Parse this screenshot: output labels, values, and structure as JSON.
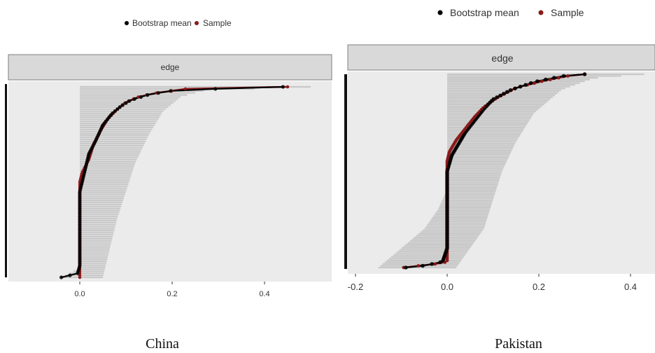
{
  "colors": {
    "bootstrap_mean": "#000000",
    "sample": "#8b1a1a",
    "ci_band": "#c8c8c8",
    "panel_bg": "#ebebeb",
    "strip_bg": "#d9d9d9"
  },
  "chart_data": [
    {
      "type": "scatter",
      "caption": "China",
      "facet": "edge",
      "legend": {
        "position": "top",
        "entries": [
          "Bootstrap mean",
          "Sample"
        ]
      },
      "xlim": [
        -0.15,
        0.52
      ],
      "x_ticks": [
        0.0,
        0.2,
        0.4
      ],
      "x_tick_labels": [
        "0.0",
        "0.2",
        "0.4"
      ],
      "grid": false,
      "n_edges": 95,
      "sample_quantiles": [
        [
          0.0,
          0.0
        ],
        [
          0.0,
          0.045
        ],
        [
          0.0,
          0.3
        ],
        [
          0.0,
          0.5
        ],
        [
          0.005,
          0.55
        ],
        [
          0.02,
          0.62
        ],
        [
          0.03,
          0.7
        ],
        [
          0.045,
          0.77
        ],
        [
          0.06,
          0.83
        ],
        [
          0.08,
          0.88
        ],
        [
          0.1,
          0.92
        ],
        [
          0.13,
          0.95
        ],
        [
          0.17,
          0.97
        ],
        [
          0.22,
          0.985
        ],
        [
          0.24,
          0.995
        ],
        [
          0.42,
          0.998
        ],
        [
          0.45,
          1.0
        ]
      ],
      "mean_quantiles": [
        [
          -0.04,
          0.0
        ],
        [
          -0.005,
          0.02
        ],
        [
          0.0,
          0.06
        ],
        [
          0.0,
          0.45
        ],
        [
          0.01,
          0.55
        ],
        [
          0.02,
          0.65
        ],
        [
          0.035,
          0.72
        ],
        [
          0.05,
          0.8
        ],
        [
          0.07,
          0.86
        ],
        [
          0.09,
          0.9
        ],
        [
          0.11,
          0.93
        ],
        [
          0.15,
          0.96
        ],
        [
          0.2,
          0.98
        ],
        [
          0.3,
          0.99
        ],
        [
          0.44,
          1.0
        ]
      ],
      "ci_lower_quantiles": [
        [
          -0.04,
          0.0
        ],
        [
          0.0,
          0.05
        ],
        [
          0.0,
          1.0
        ]
      ],
      "ci_upper_quantiles": [
        [
          0.05,
          0.0
        ],
        [
          0.06,
          0.1
        ],
        [
          0.08,
          0.3
        ],
        [
          0.1,
          0.45
        ],
        [
          0.12,
          0.6
        ],
        [
          0.15,
          0.75
        ],
        [
          0.18,
          0.87
        ],
        [
          0.22,
          0.95
        ],
        [
          0.27,
          0.98
        ],
        [
          0.5,
          1.0
        ]
      ]
    },
    {
      "type": "scatter",
      "caption": "Pakistan",
      "facet": "edge",
      "legend": {
        "position": "top",
        "entries": [
          "Bootstrap mean",
          "Sample"
        ]
      },
      "xlim": [
        -0.21,
        0.45
      ],
      "x_ticks": [
        -0.2,
        0.0,
        0.2,
        0.4
      ],
      "x_tick_labels": [
        "-0.2",
        "0.0",
        "0.2",
        "0.4"
      ],
      "grid": false,
      "n_edges": 110,
      "sample_quantiles": [
        [
          -0.095,
          0.0
        ],
        [
          -0.06,
          0.01
        ],
        [
          -0.02,
          0.02
        ],
        [
          0.0,
          0.03
        ],
        [
          0.0,
          0.55
        ],
        [
          0.005,
          0.6
        ],
        [
          0.02,
          0.66
        ],
        [
          0.04,
          0.72
        ],
        [
          0.06,
          0.78
        ],
        [
          0.08,
          0.83
        ],
        [
          0.11,
          0.88
        ],
        [
          0.15,
          0.93
        ],
        [
          0.2,
          0.96
        ],
        [
          0.26,
          0.99
        ],
        [
          0.3,
          1.0
        ]
      ],
      "mean_quantiles": [
        [
          -0.09,
          0.0
        ],
        [
          -0.05,
          0.01
        ],
        [
          -0.01,
          0.03
        ],
        [
          0.0,
          0.1
        ],
        [
          0.0,
          0.5
        ],
        [
          0.01,
          0.58
        ],
        [
          0.025,
          0.64
        ],
        [
          0.04,
          0.7
        ],
        [
          0.06,
          0.76
        ],
        [
          0.08,
          0.82
        ],
        [
          0.1,
          0.87
        ],
        [
          0.14,
          0.92
        ],
        [
          0.19,
          0.96
        ],
        [
          0.25,
          0.99
        ],
        [
          0.3,
          1.0
        ]
      ],
      "ci_lower_quantiles": [
        [
          -0.15,
          0.0
        ],
        [
          -0.1,
          0.1
        ],
        [
          -0.05,
          0.2
        ],
        [
          -0.02,
          0.3
        ],
        [
          -0.005,
          0.38
        ],
        [
          0.0,
          0.45
        ],
        [
          0.0,
          1.0
        ]
      ],
      "ci_upper_quantiles": [
        [
          0.02,
          0.0
        ],
        [
          0.05,
          0.1
        ],
        [
          0.08,
          0.2
        ],
        [
          0.1,
          0.35
        ],
        [
          0.12,
          0.5
        ],
        [
          0.15,
          0.65
        ],
        [
          0.19,
          0.8
        ],
        [
          0.25,
          0.92
        ],
        [
          0.32,
          0.98
        ],
        [
          0.43,
          1.0
        ]
      ]
    }
  ]
}
